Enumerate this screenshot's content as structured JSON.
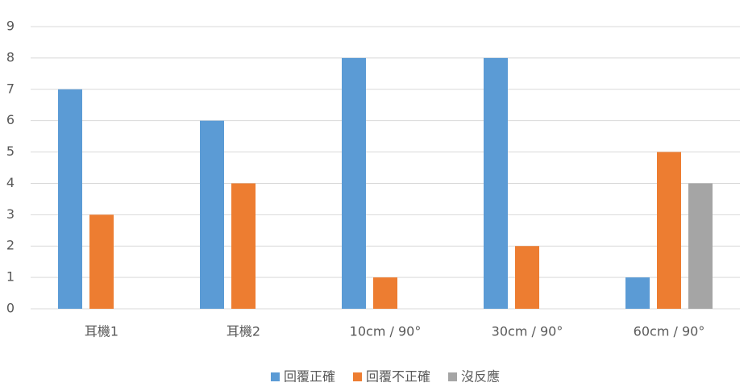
{
  "chart_data": {
    "type": "bar",
    "categories": [
      "耳機1",
      "耳機2",
      "10cm / 90°",
      "30cm / 90°",
      "60cm / 90°"
    ],
    "series": [
      {
        "name": "回覆正確",
        "color": "#5b9bd5",
        "values": [
          7,
          6,
          8,
          8,
          1
        ]
      },
      {
        "name": "回覆不正確",
        "color": "#ed7d31",
        "values": [
          3,
          4,
          1,
          2,
          5
        ]
      },
      {
        "name": "沒反應",
        "color": "#a5a5a5",
        "values": [
          0,
          0,
          0,
          0,
          4
        ]
      }
    ],
    "ylim": [
      0,
      9
    ],
    "yticks": [
      0,
      1,
      2,
      3,
      4,
      5,
      6,
      7,
      8,
      9
    ],
    "grid": true,
    "legend": "bottom"
  }
}
